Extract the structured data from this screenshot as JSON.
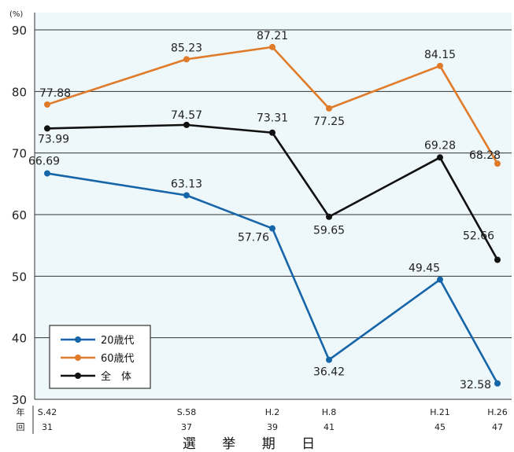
{
  "chart_data": {
    "type": "line",
    "unit": "(%)",
    "ylim": [
      30,
      90
    ],
    "yticks": [
      30,
      40,
      50,
      60,
      70,
      80,
      90
    ],
    "grid": true,
    "legend_placement": "bottom-left",
    "xlabel": "選 挙 期 日",
    "row_labels": {
      "year": "年",
      "session": "回"
    },
    "categories": [
      {
        "year": "S.42",
        "session": "31"
      },
      {
        "year": "S.58",
        "session": "37"
      },
      {
        "year": "H.2",
        "session": "39"
      },
      {
        "year": "H.8",
        "session": "41"
      },
      {
        "year": "H.21",
        "session": "45"
      },
      {
        "year": "H.26",
        "session": "47"
      }
    ],
    "series": [
      {
        "name": "20歳代",
        "color": "#1565a8",
        "values": [
          66.69,
          63.13,
          57.76,
          36.42,
          49.45,
          32.58
        ]
      },
      {
        "name": "60歳代",
        "color": "#e07b2a",
        "values": [
          77.88,
          85.23,
          87.21,
          77.25,
          84.15,
          68.28
        ]
      },
      {
        "name": "全　体",
        "color": "#111111",
        "values": [
          73.99,
          74.57,
          73.31,
          59.65,
          69.28,
          52.66
        ]
      }
    ]
  }
}
